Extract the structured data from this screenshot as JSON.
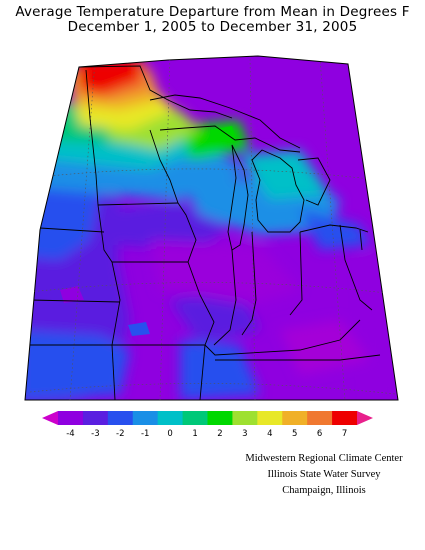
{
  "title_line1": "Average Temperature Departure from Mean in Degrees F",
  "title_line2": "December 1, 2005 to December 31, 2005",
  "legend": {
    "ticks": [
      "-4",
      "-3",
      "-2",
      "-1",
      "0",
      "1",
      "2",
      "3",
      "4",
      "5",
      "6",
      "7"
    ],
    "colors": [
      "#cc00cc",
      "#8f00e0",
      "#5a1fe0",
      "#2850ee",
      "#1a8fe6",
      "#00c0c8",
      "#00c878",
      "#00d800",
      "#9ee030",
      "#e8e828",
      "#f0b028",
      "#f07830",
      "#ee0000",
      "#e8208c"
    ]
  },
  "credits": {
    "line1": "Midwestern Regional Climate Center",
    "line2": "Illinois State Water Survey",
    "line3": "Champaign, Illinois"
  }
}
